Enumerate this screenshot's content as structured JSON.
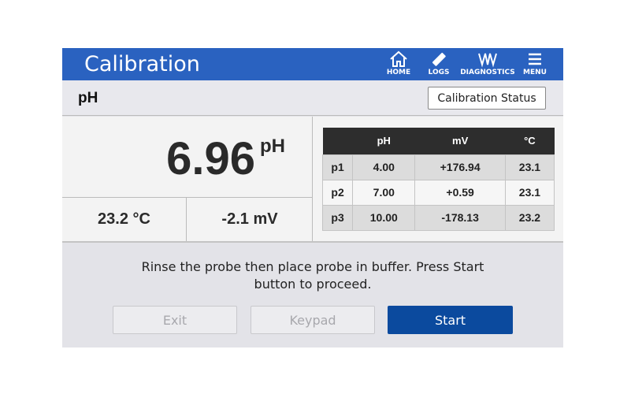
{
  "header": {
    "title": "Calibration",
    "nav": [
      {
        "label": "HOME",
        "icon": "home-icon"
      },
      {
        "label": "LOGS",
        "icon": "usb-stick-icon"
      },
      {
        "label": "DIAGNOSTICS",
        "icon": "waveform-icon"
      },
      {
        "label": "MENU",
        "icon": "hamburger-menu-icon"
      }
    ]
  },
  "subheader": {
    "title": "pH",
    "status_button": "Calibration Status"
  },
  "reading": {
    "value": "6.96",
    "unit": "pH",
    "temperature": "23.2 °C",
    "millivolts": "-2.1 mV"
  },
  "table": {
    "headers": [
      "",
      "pH",
      "mV",
      "°C"
    ],
    "rows": [
      [
        "p1",
        "4.00",
        "+176.94",
        "23.1"
      ],
      [
        "p2",
        "7.00",
        "+0.59",
        "23.1"
      ],
      [
        "p3",
        "10.00",
        "-178.13",
        "23.2"
      ]
    ]
  },
  "message": {
    "line1": "Rinse the probe then place probe in buffer.  Press Start",
    "line2": "button to proceed."
  },
  "buttons": {
    "exit": "Exit",
    "keypad": "Keypad",
    "start": "Start"
  },
  "colors": {
    "header": "#2a62c0",
    "start": "#0b4a9e"
  }
}
